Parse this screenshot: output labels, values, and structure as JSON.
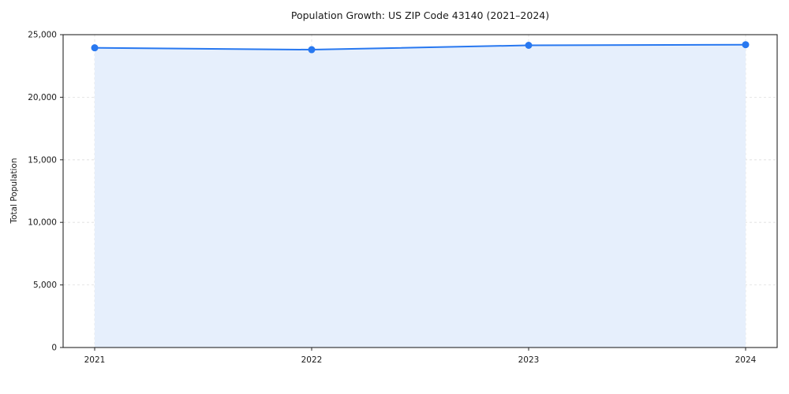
{
  "chart_data": {
    "type": "area",
    "title": "Population Growth: US ZIP Code 43140 (2021–2024)",
    "xlabel": "",
    "ylabel": "Total Population",
    "categories": [
      "2021",
      "2022",
      "2023",
      "2024"
    ],
    "values": [
      23950,
      23800,
      24150,
      24200
    ],
    "ylim": [
      0,
      25000
    ],
    "yticks": [
      0,
      5000,
      10000,
      15000,
      20000,
      25000
    ],
    "grid": true,
    "legend": "none",
    "colors": {
      "line": "#2878f0",
      "marker": "#2878f0",
      "fill": "#e6effc",
      "grid": "#dedede",
      "spine": "#262626",
      "tick_text": "#1a1a1a"
    }
  }
}
